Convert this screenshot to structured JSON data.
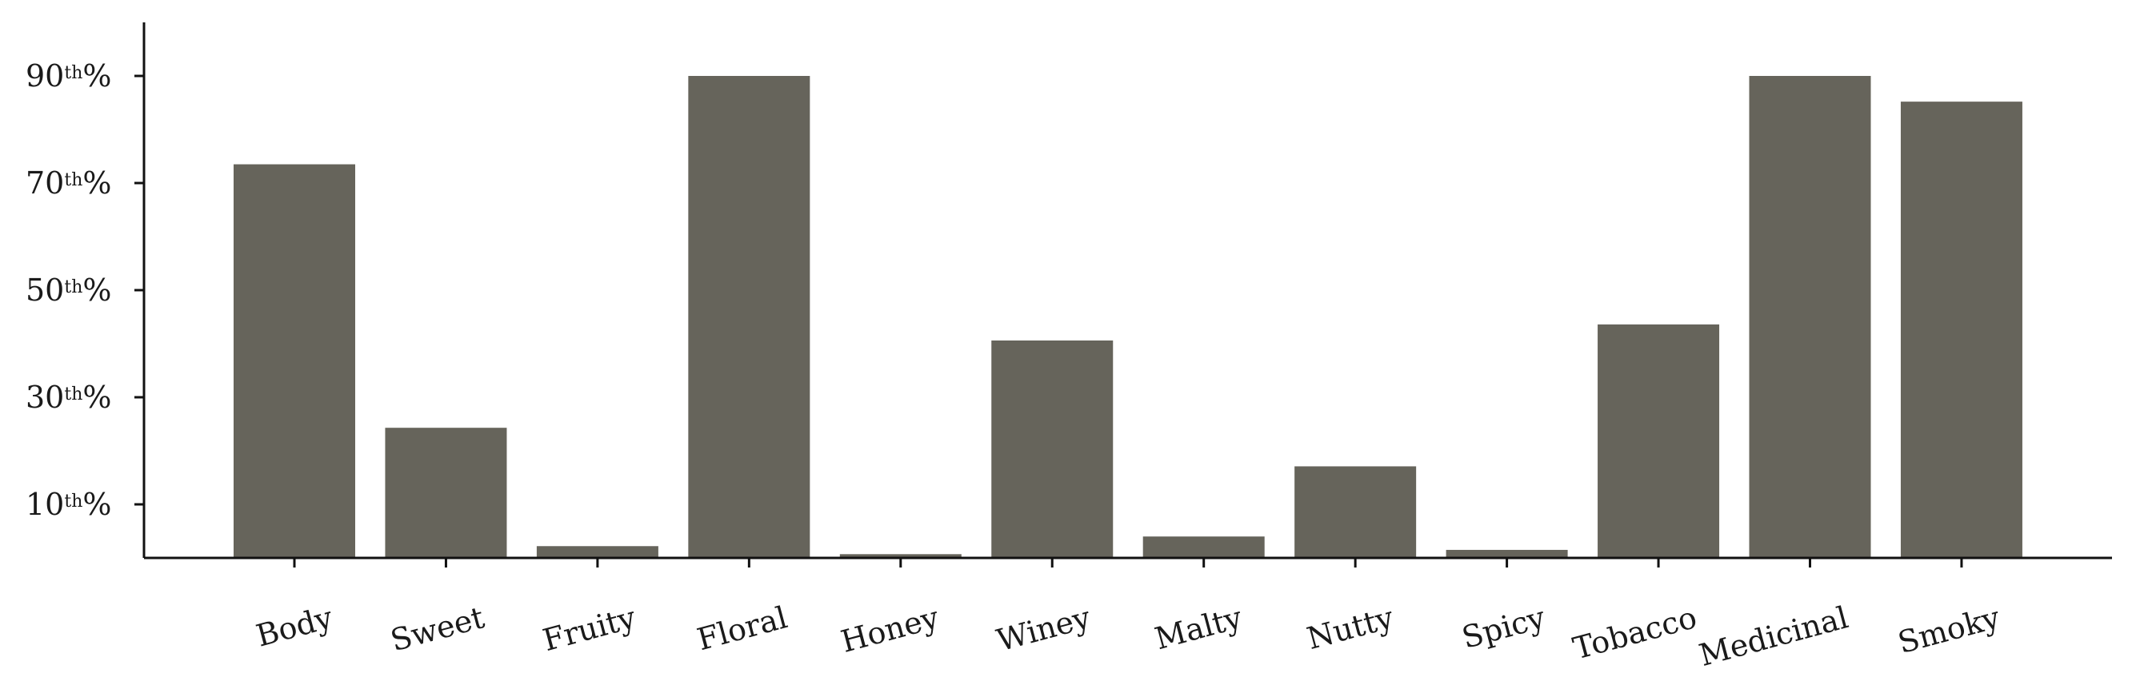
{
  "chart_data": {
    "type": "bar",
    "categories": [
      "Body",
      "Sweet",
      "Fruity",
      "Floral",
      "Honey",
      "Winey",
      "Malty",
      "Nutty",
      "Spicy",
      "Tobacco",
      "Medicinal",
      "Smoky"
    ],
    "values": [
      73.5,
      24.3,
      2.2,
      90.0,
      0.7,
      40.6,
      4.0,
      17.1,
      1.5,
      43.6,
      90.0,
      85.2
    ],
    "yticks": [
      {
        "value": 10,
        "num": "10",
        "sup": "th",
        "suffix": "%"
      },
      {
        "value": 30,
        "num": "30",
        "sup": "th",
        "suffix": "%"
      },
      {
        "value": 50,
        "num": "50",
        "sup": "th",
        "suffix": "%"
      },
      {
        "value": 70,
        "num": "70",
        "sup": "th",
        "suffix": "%"
      },
      {
        "value": 90,
        "num": "90",
        "sup": "th",
        "suffix": "%"
      }
    ],
    "ylim": [
      0,
      100
    ],
    "title": "",
    "xlabel": "",
    "ylabel": "",
    "grid": false,
    "bar_color": "#66645b"
  }
}
